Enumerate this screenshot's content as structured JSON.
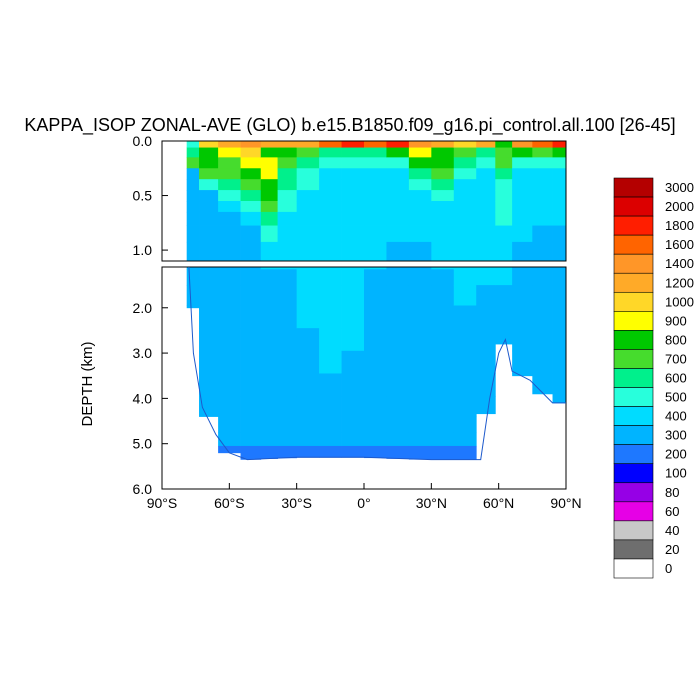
{
  "chart_data": {
    "type": "heatmap",
    "title": "KAPPA_ISOP ZONAL-AVE (GLO) b.e15.B1850.f09_g16.pi_control.all.100 [26-45]",
    "ylabel": "DEPTH (km)",
    "xlabel": "",
    "xlim": [
      -90,
      90
    ],
    "ylim": [
      6.0,
      0.0
    ],
    "x_ticks": [
      {
        "value": -90,
        "label": "90°S"
      },
      {
        "value": -60,
        "label": "60°S"
      },
      {
        "value": -30,
        "label": "30°S"
      },
      {
        "value": 0,
        "label": "0°"
      },
      {
        "value": 30,
        "label": "30°N"
      },
      {
        "value": 60,
        "label": "60°N"
      },
      {
        "value": 90,
        "label": "90°N"
      }
    ],
    "upper_panel": {
      "depth_range_km": [
        0.0,
        1.1
      ],
      "y_ticks": [
        {
          "value": 0.0,
          "label": "0.0"
        },
        {
          "value": 0.5,
          "label": "0.5"
        },
        {
          "value": 1.0,
          "label": "1.0"
        }
      ]
    },
    "lower_panel": {
      "depth_range_km": [
        1.1,
        6.0
      ],
      "y_ticks": [
        {
          "value": 2.0,
          "label": "2.0"
        },
        {
          "value": 3.0,
          "label": "3.0"
        },
        {
          "value": 4.0,
          "label": "4.0"
        },
        {
          "value": 5.0,
          "label": "5.0"
        },
        {
          "value": 6.0,
          "label": "6.0"
        }
      ]
    },
    "colorbar": {
      "levels": [
        "0",
        "20",
        "40",
        "60",
        "80",
        "100",
        "200",
        "300",
        "400",
        "500",
        "600",
        "700",
        "800",
        "900",
        "1000",
        "1200",
        "1400",
        "1600",
        "1800",
        "2000",
        "3000"
      ],
      "colors": [
        "#ffffff",
        "#6e6e6e",
        "#c8c8c8",
        "#e600e6",
        "#9600e6",
        "#0000ff",
        "#1e78ff",
        "#00b4ff",
        "#00dcff",
        "#28ffdc",
        "#00f08c",
        "#46dc2d",
        "#00c800",
        "#ffff00",
        "#ffd728",
        "#ffaa28",
        "#ff9628",
        "#ff6400",
        "#ff1e00",
        "#dc0000",
        "#b40000"
      ]
    },
    "zonal_profile": [
      {
        "lat": -77,
        "v": [
          500,
          600,
          700,
          300,
          300,
          300,
          300,
          300,
          300,
          300,
          300,
          300,
          300,
          300,
          300,
          300,
          300,
          300,
          300,
          300
        ]
      },
      {
        "lat": -70,
        "v": [
          1000,
          800,
          800,
          700,
          500,
          300,
          300,
          300,
          300,
          300,
          300,
          300,
          300,
          300,
          300,
          300,
          300,
          300,
          300,
          200
        ]
      },
      {
        "lat": -60,
        "v": [
          1200,
          900,
          700,
          700,
          600,
          500,
          400,
          300,
          300,
          300,
          300,
          300,
          300,
          300,
          300,
          300,
          300,
          300,
          300,
          200
        ]
      },
      {
        "lat": -50,
        "v": [
          1400,
          1000,
          900,
          800,
          700,
          600,
          500,
          400,
          300,
          300,
          300,
          300,
          300,
          300,
          300,
          300,
          300,
          300,
          300,
          200
        ]
      },
      {
        "lat": -42,
        "v": [
          1200,
          800,
          900,
          900,
          800,
          800,
          700,
          600,
          500,
          400,
          300,
          300,
          300,
          300,
          300,
          300,
          300,
          300,
          300,
          200
        ]
      },
      {
        "lat": -35,
        "v": [
          1200,
          800,
          700,
          600,
          600,
          500,
          500,
          400,
          400,
          400,
          300,
          300,
          300,
          300,
          300,
          300,
          300,
          300,
          300,
          200
        ]
      },
      {
        "lat": -25,
        "v": [
          1200,
          700,
          600,
          500,
          500,
          400,
          400,
          400,
          400,
          400,
          400,
          400,
          400,
          300,
          300,
          300,
          300,
          300,
          300,
          200
        ]
      },
      {
        "lat": -15,
        "v": [
          1600,
          600,
          500,
          400,
          400,
          400,
          400,
          400,
          400,
          400,
          400,
          400,
          400,
          400,
          400,
          300,
          300,
          300,
          300,
          200
        ]
      },
      {
        "lat": -5,
        "v": [
          1800,
          600,
          500,
          400,
          400,
          400,
          400,
          400,
          400,
          400,
          400,
          400,
          400,
          400,
          300,
          300,
          300,
          300,
          300,
          200
        ]
      },
      {
        "lat": 5,
        "v": [
          1600,
          600,
          500,
          400,
          400,
          400,
          400,
          400,
          400,
          400,
          300,
          300,
          300,
          300,
          300,
          300,
          300,
          300,
          300,
          200
        ]
      },
      {
        "lat": 15,
        "v": [
          1800,
          800,
          500,
          400,
          400,
          400,
          400,
          400,
          400,
          300,
          300,
          300,
          300,
          300,
          300,
          300,
          300,
          300,
          300,
          200
        ]
      },
      {
        "lat": 25,
        "v": [
          1400,
          900,
          800,
          600,
          500,
          400,
          400,
          400,
          400,
          300,
          300,
          300,
          300,
          300,
          300,
          300,
          300,
          300,
          300,
          200
        ]
      },
      {
        "lat": 35,
        "v": [
          1200,
          800,
          800,
          700,
          600,
          500,
          400,
          400,
          400,
          400,
          300,
          300,
          300,
          300,
          300,
          300,
          300,
          300,
          300,
          200
        ]
      },
      {
        "lat": 45,
        "v": [
          1000,
          700,
          600,
          500,
          400,
          400,
          400,
          400,
          400,
          400,
          400,
          400,
          300,
          300,
          300,
          300,
          300,
          300,
          300,
          200
        ]
      },
      {
        "lat": 55,
        "v": [
          1200,
          600,
          500,
          400,
          400,
          400,
          400,
          400,
          400,
          400,
          400,
          300,
          300,
          300,
          300,
          300,
          300,
          300,
          300,
          200
        ]
      },
      {
        "lat": 62,
        "v": [
          800,
          700,
          700,
          600,
          500,
          500,
          500,
          500,
          400,
          400,
          400,
          300,
          300,
          300,
          300,
          300,
          300,
          300,
          300,
          200
        ]
      },
      {
        "lat": 70,
        "v": [
          1400,
          800,
          500,
          400,
          400,
          400,
          400,
          400,
          400,
          300,
          300,
          300,
          300,
          300,
          300,
          300,
          300,
          300,
          300,
          200
        ]
      },
      {
        "lat": 80,
        "v": [
          1600,
          700,
          500,
          400,
          400,
          400,
          400,
          400,
          300,
          300,
          300,
          300,
          300,
          300,
          300,
          300,
          300,
          300,
          300,
          200
        ]
      },
      {
        "lat": 88,
        "v": [
          1800,
          800,
          500,
          400,
          400,
          400,
          400,
          400,
          300,
          300,
          300,
          300,
          300,
          300,
          300,
          300,
          300,
          300,
          300,
          200
        ]
      }
    ],
    "zonal_profile_depths_km": [
      0.02,
      0.1,
      0.2,
      0.3,
      0.4,
      0.5,
      0.6,
      0.7,
      0.85,
      1.0,
      1.3,
      1.7,
      2.2,
      2.7,
      3.2,
      3.7,
      4.2,
      4.6,
      4.9,
      5.2
    ],
    "sea_floor_km": [
      {
        "lat": -78,
        "d": 1.0
      },
      {
        "lat": -76,
        "d": 3.0
      },
      {
        "lat": -72,
        "d": 4.2
      },
      {
        "lat": -66,
        "d": 4.8
      },
      {
        "lat": -60,
        "d": 5.2
      },
      {
        "lat": -52,
        "d": 5.35
      },
      {
        "lat": -30,
        "d": 5.3
      },
      {
        "lat": 0,
        "d": 5.3
      },
      {
        "lat": 30,
        "d": 5.35
      },
      {
        "lat": 52,
        "d": 5.35
      },
      {
        "lat": 56,
        "d": 4.0
      },
      {
        "lat": 60,
        "d": 3.0
      },
      {
        "lat": 63,
        "d": 2.7
      },
      {
        "lat": 66,
        "d": 3.4
      },
      {
        "lat": 70,
        "d": 3.5
      },
      {
        "lat": 74,
        "d": 3.6
      },
      {
        "lat": 80,
        "d": 3.9
      },
      {
        "lat": 84,
        "d": 4.1
      },
      {
        "lat": 90,
        "d": 4.1
      }
    ]
  }
}
